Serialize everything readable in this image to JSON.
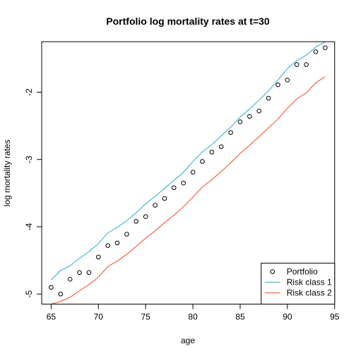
{
  "chart_data": {
    "type": "line",
    "title": "Portfolio log mortality rates at t=30",
    "xlabel": "age",
    "ylabel": "log mortality rates",
    "xlim": [
      64.0,
      95.0
    ],
    "ylim": [
      -5.15,
      -1.25
    ],
    "xticks": [
      65,
      70,
      75,
      80,
      85,
      90,
      95
    ],
    "yticks": [
      -5,
      -4,
      -3,
      -2
    ],
    "legend_position": "bottom-right",
    "grid": false,
    "x": [
      65,
      66,
      67,
      68,
      69,
      70,
      71,
      72,
      73,
      74,
      75,
      76,
      77,
      78,
      79,
      80,
      81,
      82,
      83,
      84,
      85,
      86,
      87,
      88,
      89,
      90,
      91,
      92,
      93,
      94
    ],
    "series": [
      {
        "name": "Portfolio",
        "style": "points",
        "color": "#000000",
        "values": [
          -4.9,
          -5.0,
          -4.78,
          -4.68,
          -4.68,
          -4.45,
          -4.28,
          -4.24,
          -4.11,
          -3.92,
          -3.85,
          -3.68,
          -3.58,
          -3.42,
          -3.35,
          -3.19,
          -3.03,
          -2.89,
          -2.81,
          -2.6,
          -2.44,
          -2.36,
          -2.28,
          -2.09,
          -1.89,
          -1.82,
          -1.59,
          -1.59,
          -1.4,
          -1.34
        ]
      },
      {
        "name": "Risk class 1",
        "style": "line",
        "color": "#5bbcd6",
        "values": [
          -4.79,
          -4.65,
          -4.58,
          -4.47,
          -4.37,
          -4.25,
          -4.09,
          -4.01,
          -3.91,
          -3.79,
          -3.66,
          -3.55,
          -3.43,
          -3.31,
          -3.19,
          -3.03,
          -2.89,
          -2.78,
          -2.65,
          -2.52,
          -2.37,
          -2.25,
          -2.12,
          -1.98,
          -1.82,
          -1.65,
          -1.53,
          -1.45,
          -1.33,
          -1.25
        ]
      },
      {
        "name": "Risk class 2",
        "style": "line",
        "color": "#f4714f",
        "values": [
          -5.15,
          -5.11,
          -5.05,
          -4.95,
          -4.86,
          -4.75,
          -4.59,
          -4.51,
          -4.41,
          -4.29,
          -4.17,
          -4.06,
          -3.94,
          -3.83,
          -3.7,
          -3.56,
          -3.41,
          -3.3,
          -3.18,
          -3.05,
          -2.91,
          -2.79,
          -2.66,
          -2.53,
          -2.4,
          -2.24,
          -2.1,
          -2.01,
          -1.86,
          -1.77
        ]
      }
    ]
  }
}
